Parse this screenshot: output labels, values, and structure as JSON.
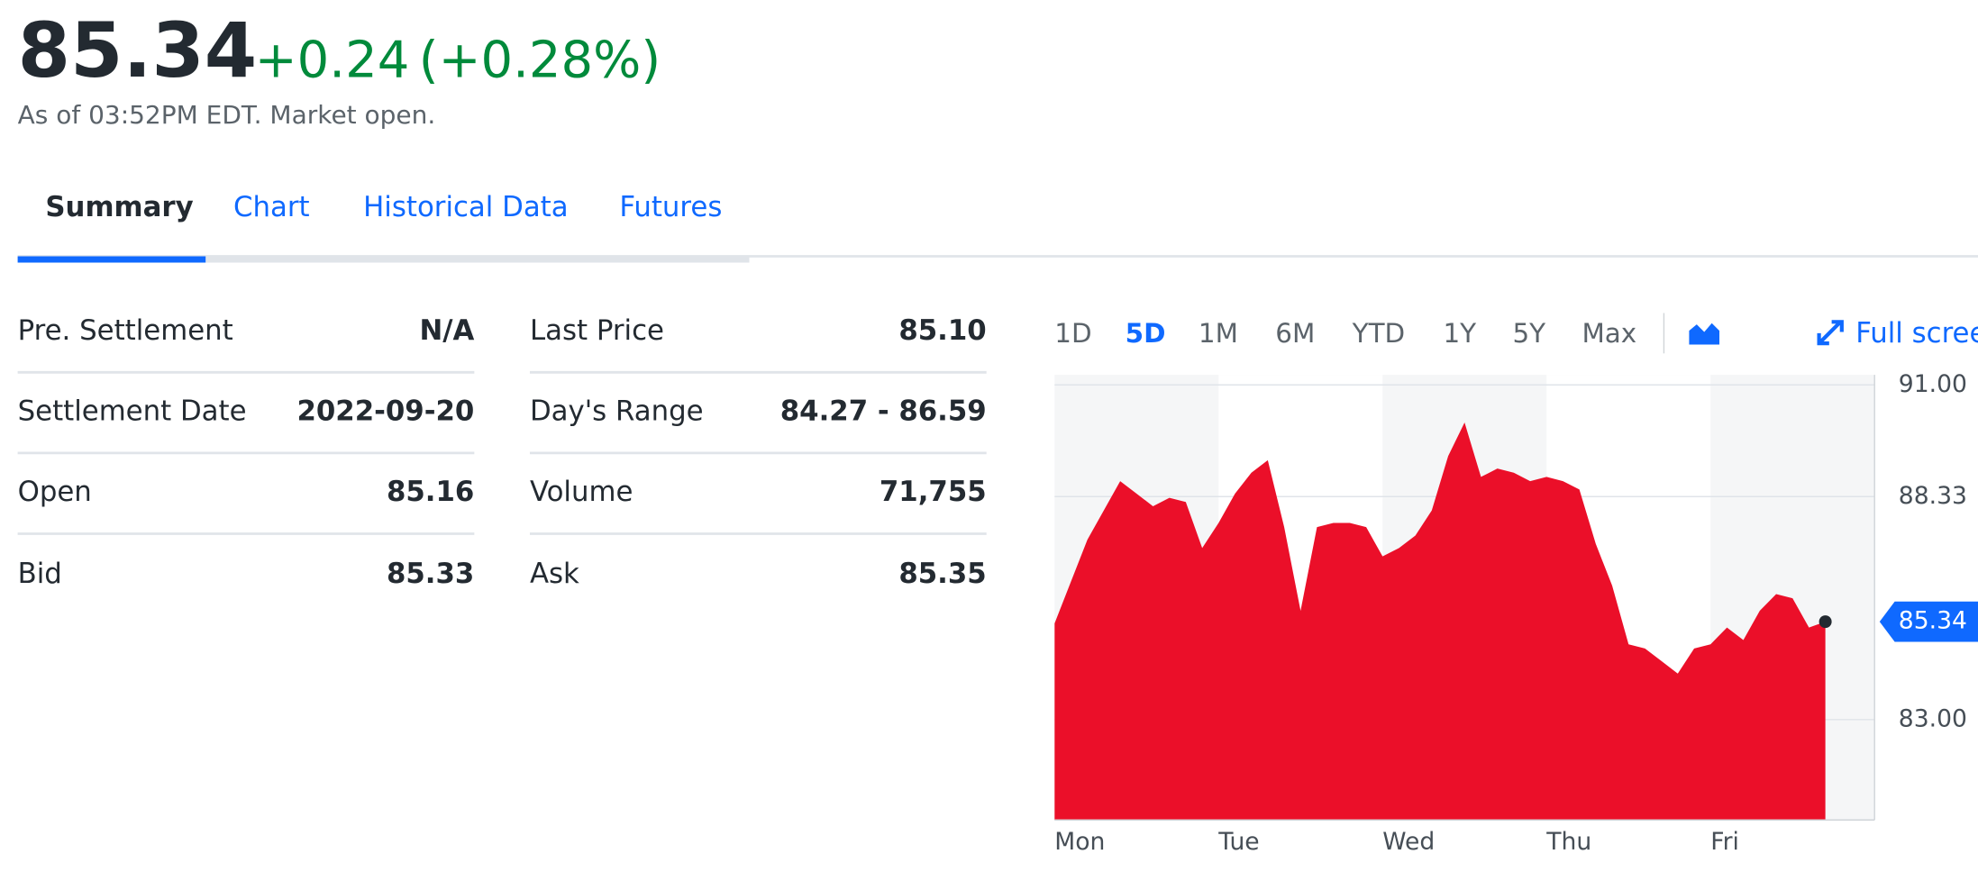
{
  "quote": {
    "price": "85.34",
    "change": "+0.24",
    "change_percent": "(+0.28%)",
    "timestamp": "As of 03:52PM EDT. Market open."
  },
  "tabs": [
    "Summary",
    "Chart",
    "Historical Data",
    "Futures"
  ],
  "stats": [
    [
      [
        "Pre. Settlement",
        "N/A"
      ],
      [
        "Settlement Date",
        "2022-09-20"
      ],
      [
        "Open",
        "85.16"
      ],
      [
        "Bid",
        "85.33"
      ]
    ],
    [
      [
        "Last Price",
        "85.10"
      ],
      [
        "Day's Range",
        "84.27 - 86.59"
      ],
      [
        "Volume",
        "71,755"
      ],
      [
        "Ask",
        "85.35"
      ]
    ]
  ],
  "ranges": [
    "1D",
    "5D",
    "1M",
    "6M",
    "YTD",
    "1Y",
    "5Y",
    "Max"
  ],
  "fullscreen": "Full screen",
  "chart_data": {
    "type": "area",
    "color": "#eb0f29",
    "categories": [
      "Mon",
      null,
      null,
      null,
      null,
      null,
      null,
      null,
      null,
      null,
      "Tue",
      null,
      null,
      null,
      null,
      null,
      null,
      null,
      null,
      null,
      "Wed",
      null,
      null,
      null,
      null,
      null,
      null,
      null,
      null,
      null,
      "Thu",
      null,
      null,
      null,
      null,
      null,
      null,
      null,
      null,
      null,
      "Fri",
      null,
      null,
      null,
      null,
      null,
      null,
      null
    ],
    "values": [
      85.3,
      86.3,
      87.3,
      88.0,
      88.7,
      88.4,
      88.1,
      88.3,
      88.2,
      87.1,
      87.7,
      88.4,
      88.9,
      89.2,
      87.6,
      85.6,
      87.6,
      87.7,
      87.7,
      87.6,
      86.9,
      87.1,
      87.4,
      88.0,
      89.3,
      90.1,
      88.8,
      89.0,
      88.9,
      88.7,
      88.8,
      88.7,
      88.5,
      87.2,
      86.2,
      84.8,
      84.7,
      84.4,
      84.1,
      84.7,
      84.8,
      85.2,
      84.9,
      85.6,
      86.0,
      85.9,
      85.2,
      85.34
    ],
    "annotations": [
      "85.34"
    ],
    "ylim": [
      80.6,
      91.24
    ],
    "yticks": [
      {
        "value": 83,
        "label": "83.00"
      },
      {
        "value": 88.33,
        "label": "88.33"
      },
      {
        "value": 91,
        "label": "91.00"
      }
    ]
  }
}
